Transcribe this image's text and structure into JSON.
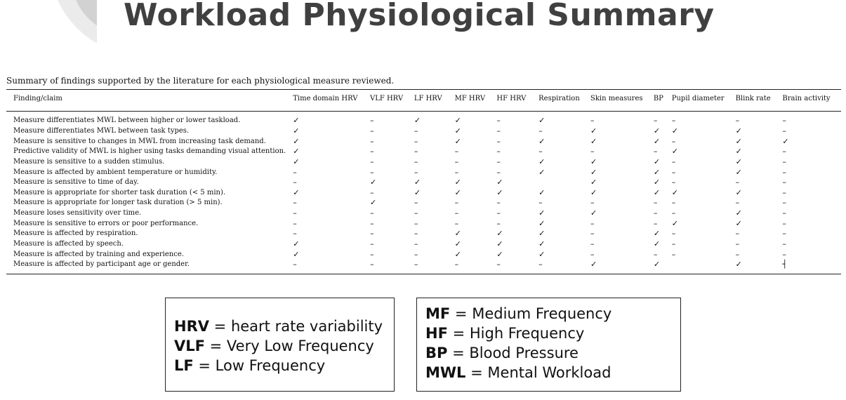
{
  "slide": {
    "title": "Workload Physiological Summary"
  },
  "table": {
    "caption": "Summary of findings supported by the literature for each physiological measure reviewed.",
    "headers": [
      "Finding/claim",
      "Time domain HRV",
      "VLF HRV",
      "LF HRV",
      "MF HRV",
      "HF HRV",
      "Respiration",
      "Skin measures",
      "BP",
      "Pupil diameter",
      "Blink rate",
      "Brain activity"
    ],
    "rows": [
      {
        "claim": "Measure differentiates MWL between higher or lower taskload.",
        "marks": [
          "✓",
          "–",
          "✓",
          "✓",
          "–",
          "✓",
          "–",
          "–",
          "–",
          "–",
          "–"
        ]
      },
      {
        "claim": "Measure differentiates MWL between task types.",
        "marks": [
          "✓",
          "–",
          "–",
          "✓",
          "–",
          "–",
          "✓",
          "✓",
          "✓",
          "✓",
          "–"
        ]
      },
      {
        "claim": "Measure is sensitive to changes in MWL from increasing task demand.",
        "marks": [
          "✓",
          "–",
          "–",
          "✓",
          "–",
          "✓",
          "✓",
          "✓",
          "–",
          "✓",
          "✓"
        ]
      },
      {
        "claim": "Predictive validity of MWL is higher using tasks demanding visual attention.",
        "marks": [
          "✓",
          "–",
          "–",
          "–",
          "–",
          "–",
          "–",
          "–",
          "✓",
          "✓",
          "–"
        ]
      },
      {
        "claim": "Measure is sensitive to a sudden stimulus.",
        "marks": [
          "✓",
          "–",
          "–",
          "–",
          "–",
          "✓",
          "✓",
          "✓",
          "–",
          "✓",
          "–"
        ]
      },
      {
        "claim": "Measure is affected by ambient temperature or humidity.",
        "marks": [
          "–",
          "–",
          "–",
          "–",
          "–",
          "✓",
          "✓",
          "✓",
          "–",
          "✓",
          "–"
        ]
      },
      {
        "claim": "Measure is sensitive to time of day.",
        "marks": [
          "–",
          "✓",
          "✓",
          "✓",
          "✓",
          "",
          "✓",
          "✓",
          "–",
          "–",
          "–"
        ]
      },
      {
        "claim": "Measure is appropriate for shorter task duration (< 5 min).",
        "marks": [
          "✓",
          "–",
          "✓",
          "✓",
          "✓",
          "✓",
          "✓",
          "✓",
          "✓",
          "✓",
          "–"
        ]
      },
      {
        "claim": "Measure is appropriate for longer task duration (> 5 min).",
        "marks": [
          "–",
          "✓",
          "–",
          "–",
          "–",
          "–",
          "–",
          "–",
          "–",
          "–",
          "–"
        ]
      },
      {
        "claim": "Measure loses sensitivity over time.",
        "marks": [
          "–",
          "–",
          "–",
          "–",
          "–",
          "✓",
          "✓",
          "–",
          "–",
          "✓",
          "–"
        ]
      },
      {
        "claim": "Measure is sensitive to errors or poor performance.",
        "marks": [
          "–",
          "–",
          "–",
          "–",
          "–",
          "✓",
          "–",
          "–",
          "✓",
          "✓",
          "–"
        ]
      },
      {
        "claim": "Measure is affected by respiration.",
        "marks": [
          "–",
          "–",
          "–",
          "✓",
          "✓",
          "✓",
          "–",
          "✓",
          "–",
          "–",
          "–"
        ]
      },
      {
        "claim": "Measure is affected by speech.",
        "marks": [
          "✓",
          "–",
          "–",
          "✓",
          "✓",
          "✓",
          "–",
          "✓",
          "–",
          "–",
          "–"
        ]
      },
      {
        "claim": "Measure is affected by training and experience.",
        "marks": [
          "✓",
          "–",
          "–",
          "✓",
          "✓",
          "✓",
          "–",
          "–",
          "–",
          "–",
          "–"
        ]
      },
      {
        "claim": "Measure is affected by participant age or gender.",
        "marks": [
          "–",
          "–",
          "–",
          "–",
          "–",
          "–",
          "✓",
          "✓",
          "",
          "✓",
          "┤"
        ]
      }
    ]
  },
  "legend_left": [
    {
      "abbr": "HRV",
      "text": " = heart rate variability"
    },
    {
      "abbr": "VLF",
      "text": " = Very Low Frequency"
    },
    {
      "abbr": "LF",
      "text": " = Low Frequency"
    }
  ],
  "legend_right": [
    {
      "abbr": "MF",
      "text": " = Medium Frequency"
    },
    {
      "abbr": "HF",
      "text": " = High Frequency"
    },
    {
      "abbr": "BP",
      "text": " = Blood Pressure"
    },
    {
      "abbr": "MWL",
      "text": " = Mental Workload"
    }
  ]
}
